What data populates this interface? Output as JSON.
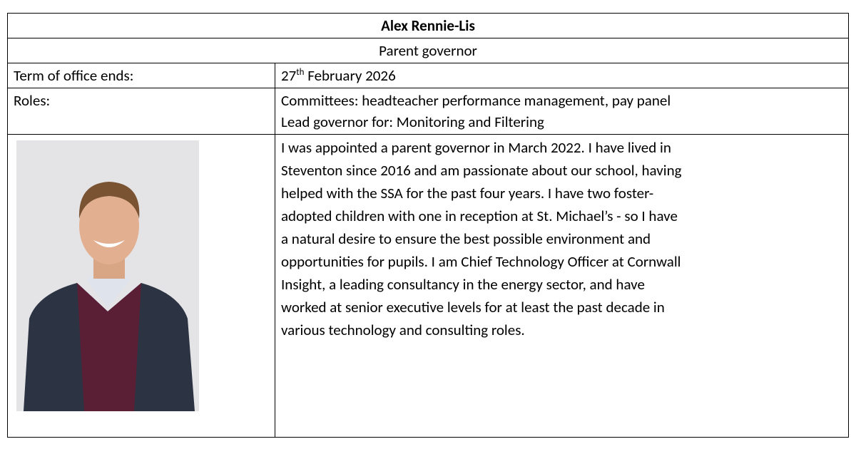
{
  "profile": {
    "name": "Alex Rennie-Lis",
    "position": "Parent governor",
    "term": {
      "label": "Term of office ends:",
      "day": "27",
      "suffix": "th",
      "rest": "February 2026"
    },
    "roles": {
      "label": "Roles:",
      "items": [
        "Committees:  headteacher performance management, pay panel",
        "Lead governor for: Monitoring and Filtering"
      ]
    },
    "bio_lines": [
      "I was appointed a parent governor in March 2022. I have lived in",
      "Steventon since 2016 and am passionate about our school, having",
      "helped with the SSA for the past four years. I have two foster-",
      "adopted children with one in reception at St. Michael’s - so I have",
      "a natural desire to ensure the best possible environment and",
      "opportunities for pupils. I am Chief Technology Officer at Cornwall",
      "Insight, a leading consultancy in the energy sector, and have",
      "worked at senior executive levels for at least the past decade in",
      "various technology and consulting roles."
    ]
  }
}
